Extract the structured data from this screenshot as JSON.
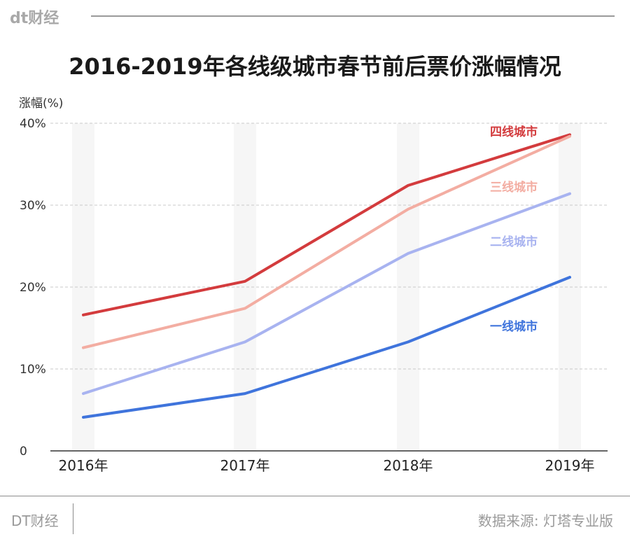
{
  "brand": {
    "top_logo": "dt财经",
    "bottom_logo": "DT财经"
  },
  "source_note": "数据来源: 灯塔专业版",
  "chart_data": {
    "type": "line",
    "title": "2016-2019年各线级城市春节前后票价涨幅情况",
    "ylabel": "涨幅(%)",
    "xlabel": "",
    "categories": [
      "2016年",
      "2017年",
      "2018年",
      "2019年"
    ],
    "ylim": [
      0,
      40
    ],
    "yticks": [
      0,
      10,
      20,
      30,
      40
    ],
    "ytick_labels": [
      "0",
      "10%",
      "20%",
      "30%",
      "40%"
    ],
    "grid": "horizontal dashed",
    "series": [
      {
        "name": "四线城市",
        "values": [
          16.6,
          20.7,
          32.4,
          38.6
        ],
        "color": "#d33b3d"
      },
      {
        "name": "三线城市",
        "values": [
          12.6,
          17.4,
          29.5,
          38.4
        ],
        "color": "#f3ada2"
      },
      {
        "name": "二线城市",
        "values": [
          7.0,
          13.3,
          24.1,
          31.4
        ],
        "color": "#a8b3f0"
      },
      {
        "name": "一线城市",
        "values": [
          4.1,
          7.0,
          13.3,
          21.2
        ],
        "color": "#3f74dc"
      }
    ]
  }
}
